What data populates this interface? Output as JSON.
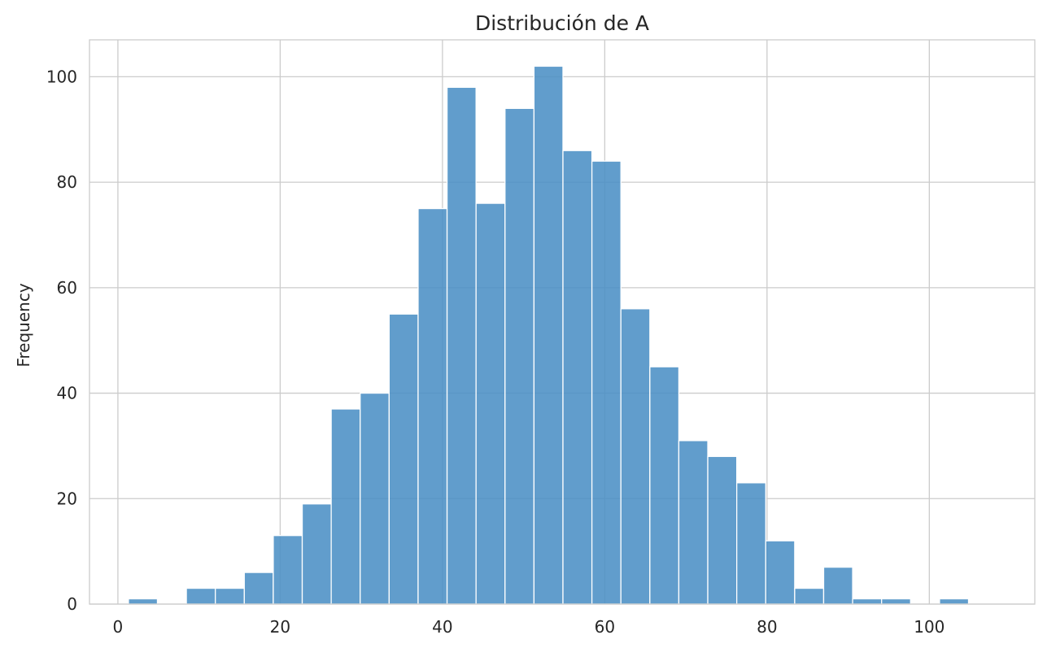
{
  "chart_data": {
    "type": "bar",
    "subtype": "histogram",
    "title": "Distribución de A",
    "xlabel": "",
    "ylabel": "Frequency",
    "xlim": [
      -3.5,
      113
    ],
    "ylim": [
      0,
      107
    ],
    "xticks": [
      0,
      20,
      40,
      60,
      80,
      100
    ],
    "yticks": [
      0,
      20,
      40,
      60,
      80,
      100
    ],
    "grid": true,
    "color": "#4a8fc4",
    "bin_start": 1.3,
    "bin_width": 3.57,
    "values": [
      1,
      0,
      3,
      3,
      6,
      13,
      19,
      37,
      40,
      55,
      75,
      98,
      76,
      94,
      102,
      86,
      84,
      56,
      45,
      31,
      28,
      23,
      12,
      3,
      7,
      1,
      1,
      0,
      1
    ]
  }
}
